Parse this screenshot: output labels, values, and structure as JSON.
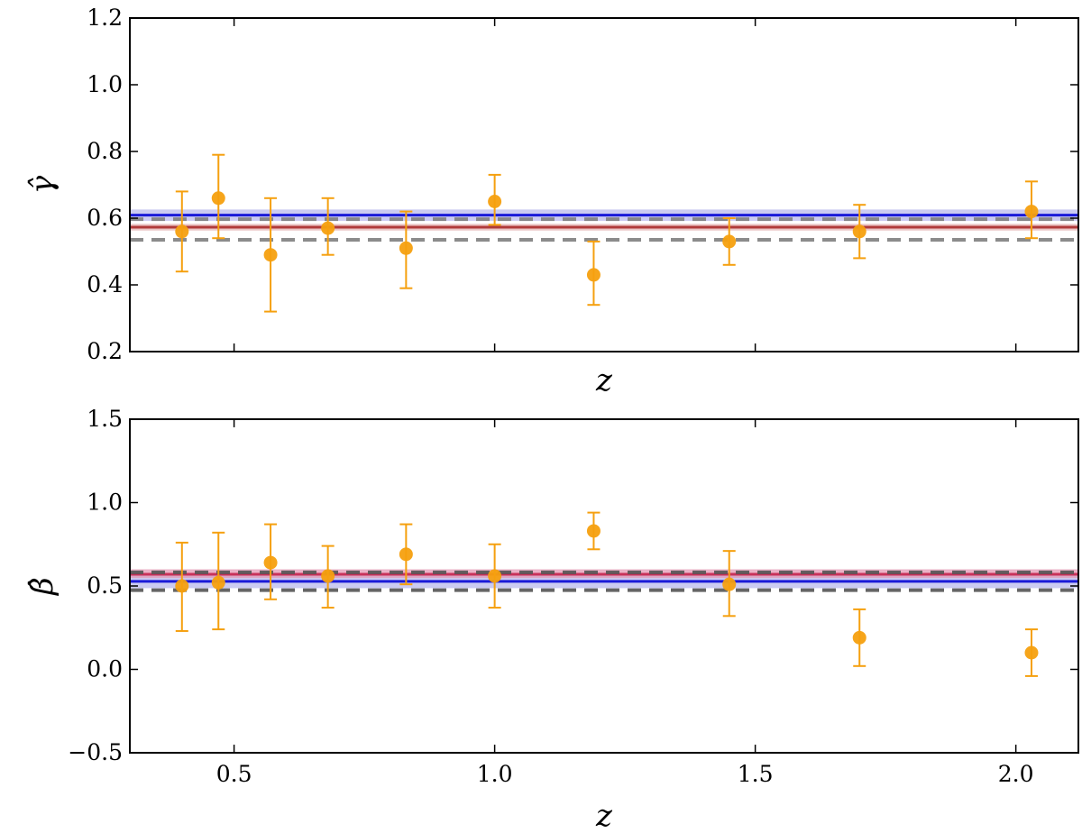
{
  "chart_data": [
    {
      "type": "scatter",
      "title": "",
      "xlabel": "z",
      "ylabel": "γ̂",
      "xlim": [
        0.3,
        2.12
      ],
      "ylim": [
        0.2,
        1.2
      ],
      "yticks": [
        "0.2",
        "0.4",
        "0.6",
        "0.8",
        "1.0",
        "1.2"
      ],
      "yticks_values": [
        0.2,
        0.4,
        0.6,
        0.8,
        1.0,
        1.2
      ],
      "xtick_values": [
        0.5,
        1.0,
        1.5,
        2.0
      ],
      "show_xtick_labels": false,
      "grid": false,
      "points": {
        "color": "#f5a00f",
        "x": [
          0.4,
          0.47,
          0.57,
          0.68,
          0.83,
          1.0,
          1.19,
          1.45,
          1.7,
          2.03
        ],
        "y": [
          0.56,
          0.66,
          0.49,
          0.57,
          0.51,
          0.65,
          0.43,
          0.53,
          0.56,
          0.62
        ],
        "y_err_upper": [
          0.68,
          0.79,
          0.66,
          0.66,
          0.62,
          0.73,
          0.53,
          0.6,
          0.64,
          0.71
        ],
        "y_err_lower": [
          0.44,
          0.54,
          0.32,
          0.49,
          0.39,
          0.58,
          0.34,
          0.46,
          0.48,
          0.54
        ]
      },
      "bands": [
        {
          "color": "#1a1ad8",
          "center": 0.609,
          "low": 0.592,
          "high": 0.626,
          "band_fill": "#b9b9ec"
        },
        {
          "color": "#b03a3a",
          "center": 0.573,
          "low": 0.563,
          "high": 0.583,
          "band_fill": "#e4b2b2"
        }
      ],
      "dashed_lines": {
        "color": "#7f7f7f",
        "values": [
          0.597,
          0.535
        ]
      }
    },
    {
      "type": "scatter",
      "title": "",
      "xlabel": "z",
      "ylabel": "β̂",
      "xlim": [
        0.3,
        2.12
      ],
      "ylim": [
        -0.5,
        1.5
      ],
      "yticks": [
        "−0.5",
        "0.0",
        "0.5",
        "1.0",
        "1.5"
      ],
      "yticks_values": [
        -0.5,
        0.0,
        0.5,
        1.0,
        1.5
      ],
      "xticks": [
        "0.5",
        "1.0",
        "1.5",
        "2.0"
      ],
      "xtick_values": [
        0.5,
        1.0,
        1.5,
        2.0
      ],
      "show_xtick_labels": true,
      "grid": false,
      "points": {
        "color": "#f5a00f",
        "x": [
          0.4,
          0.47,
          0.57,
          0.68,
          0.83,
          1.0,
          1.19,
          1.45,
          1.7,
          2.03
        ],
        "y": [
          0.5,
          0.52,
          0.64,
          0.56,
          0.69,
          0.56,
          0.83,
          0.51,
          0.19,
          0.1
        ],
        "y_err_upper": [
          0.76,
          0.82,
          0.87,
          0.74,
          0.87,
          0.75,
          0.94,
          0.71,
          0.36,
          0.24
        ],
        "y_err_lower": [
          0.23,
          0.24,
          0.42,
          0.37,
          0.51,
          0.37,
          0.72,
          0.32,
          0.02,
          -0.04
        ]
      },
      "bands": [
        {
          "color": "#1a1ad8",
          "center": 0.528,
          "low": 0.487,
          "high": 0.568,
          "band_fill": "#b9b9ec"
        },
        {
          "color": "#c8325a",
          "center": 0.57,
          "low": 0.548,
          "high": 0.6,
          "band_fill": "#e49ab4"
        }
      ],
      "dashed_lines": {
        "color": "#555555",
        "values": [
          0.582,
          0.475
        ]
      }
    }
  ]
}
